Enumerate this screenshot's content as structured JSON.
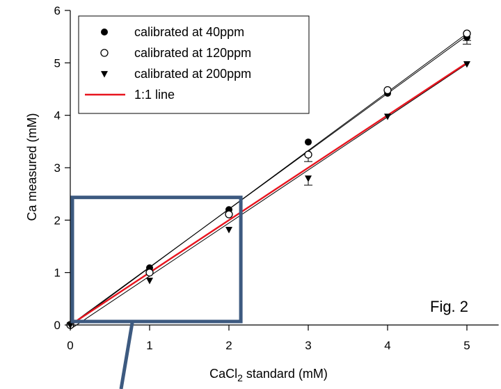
{
  "chart_data": {
    "type": "scatter",
    "title": "",
    "xlabel_main": "CaCl",
    "xlabel_sub": "2",
    "xlabel_rest": " standard (mM)",
    "ylabel": "Ca measured (mM)",
    "xlim": [
      0,
      5.4
    ],
    "ylim": [
      0,
      6
    ],
    "x_ticks": [
      0,
      1,
      2,
      3,
      4,
      5
    ],
    "y_ticks": [
      0,
      1,
      2,
      3,
      4,
      5,
      6
    ],
    "annotation": "Fig. 2",
    "legend_position": "top-left",
    "series": [
      {
        "name": "calibrated at 40ppm",
        "marker": "filled-circle",
        "color": "#000000",
        "x": [
          0,
          1,
          2,
          3,
          4,
          5
        ],
        "y": [
          0.0,
          1.09,
          2.2,
          3.49,
          4.42,
          5.49
        ],
        "fit": [
          [
            0,
            0.0
          ],
          [
            5,
            5.52
          ]
        ]
      },
      {
        "name": "calibrated at 120ppm",
        "marker": "open-circle",
        "color": "#000000",
        "x": [
          0,
          1,
          2,
          3,
          4,
          5
        ],
        "y": [
          0.0,
          1.0,
          2.11,
          3.25,
          4.48,
          5.56
        ],
        "fit": [
          [
            0,
            -0.02
          ],
          [
            5,
            5.56
          ]
        ]
      },
      {
        "name": "calibrated at 200ppm",
        "marker": "filled-triangle-down",
        "color": "#000000",
        "x": [
          0,
          1,
          2,
          3,
          4,
          5
        ],
        "y": [
          0.0,
          0.85,
          1.82,
          2.8,
          3.98,
          4.98
        ],
        "fit": [
          [
            0,
            -0.08
          ],
          [
            5,
            4.98
          ]
        ]
      },
      {
        "name": "1:1 line",
        "marker": "line",
        "color": "#e8141e",
        "x": [
          0,
          5
        ],
        "y": [
          0,
          5
        ]
      }
    ],
    "zoom_box": {
      "x": [
        0.0,
        2.15
      ],
      "y": [
        0.0,
        2.5
      ],
      "color": "#3d5a80"
    }
  }
}
